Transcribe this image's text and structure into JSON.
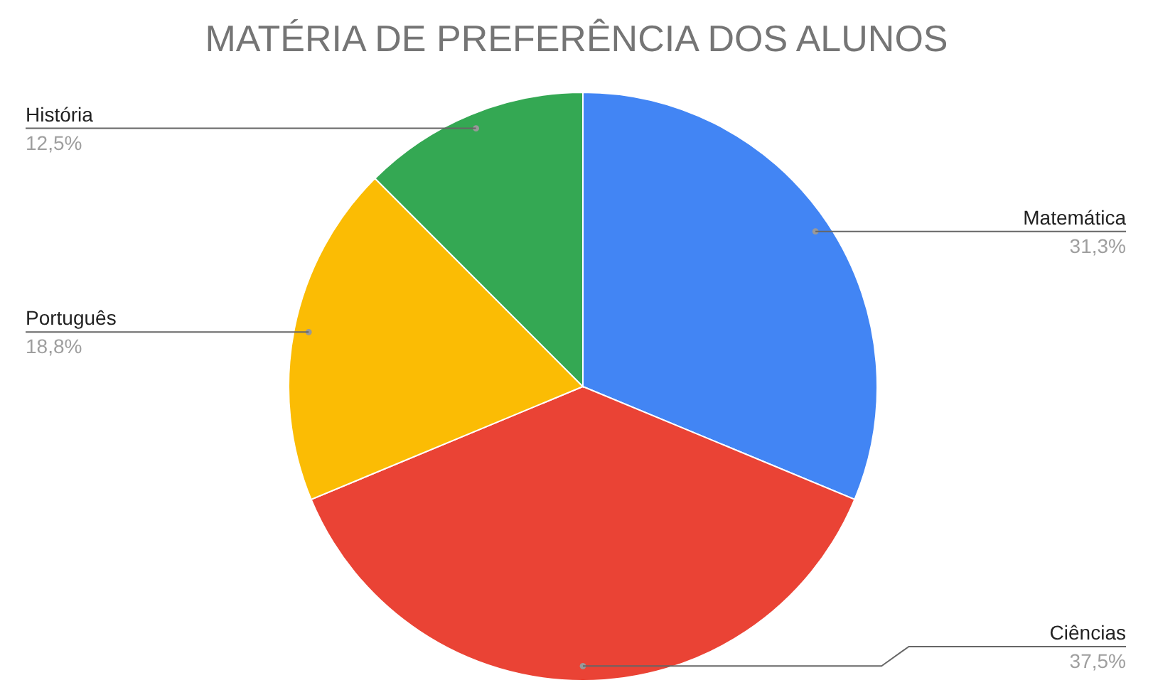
{
  "chart_data": {
    "type": "pie",
    "title": "MATÉRIA DE PREFERÊNCIA DOS ALUNOS",
    "categories": [
      "Matemática",
      "Ciências",
      "Português",
      "História"
    ],
    "values": [
      31.3,
      37.5,
      18.8,
      12.5
    ],
    "value_labels": [
      "31,3%",
      "37,5%",
      "18,8%",
      "12,5%"
    ],
    "colors": [
      "#4285f4",
      "#ea4335",
      "#fbbc04",
      "#34a853"
    ],
    "legend": false
  }
}
